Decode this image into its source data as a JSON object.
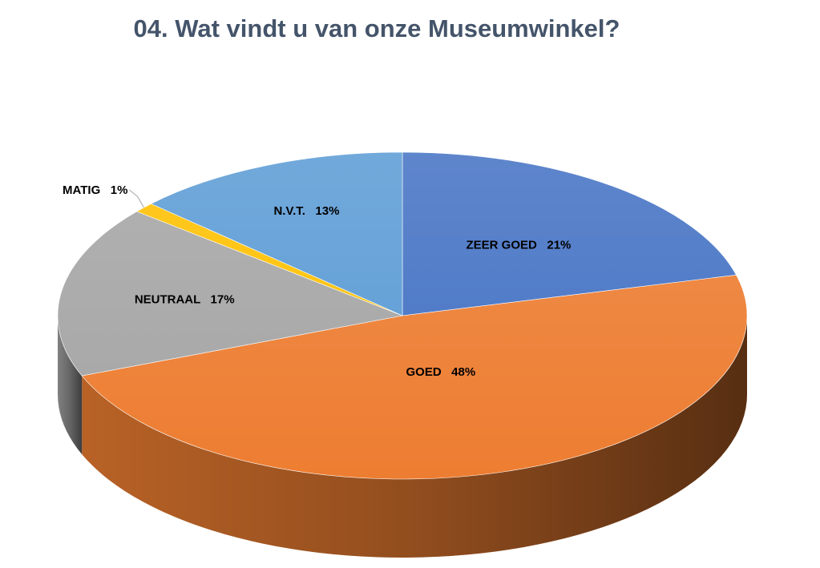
{
  "chart_data": {
    "type": "pie",
    "title": "04. Wat vindt u van onze Museumwinkel?",
    "categories": [
      "ZEER GOED",
      "GOED",
      "NEUTRAAL",
      "MATIG",
      "N.V.T."
    ],
    "values": [
      21,
      48,
      17,
      1,
      13
    ],
    "unit": "%",
    "data_labels": [
      {
        "category": "ZEER GOED",
        "text": "ZEER GOED   21%"
      },
      {
        "category": "GOED",
        "text": "GOED   48%"
      },
      {
        "category": "NEUTRAAL",
        "text": "NEUTRAAL   17%"
      },
      {
        "category": "MATIG",
        "text": "MATIG   1%"
      },
      {
        "category": "N.V.T.",
        "text": "N.V.T.   13%"
      }
    ],
    "colors": [
      "#4472c4",
      "#ed7d31",
      "#a5a5a5",
      "#ffc000",
      "#5b9bd5"
    ],
    "style": "3d-pie",
    "legend": "none"
  }
}
